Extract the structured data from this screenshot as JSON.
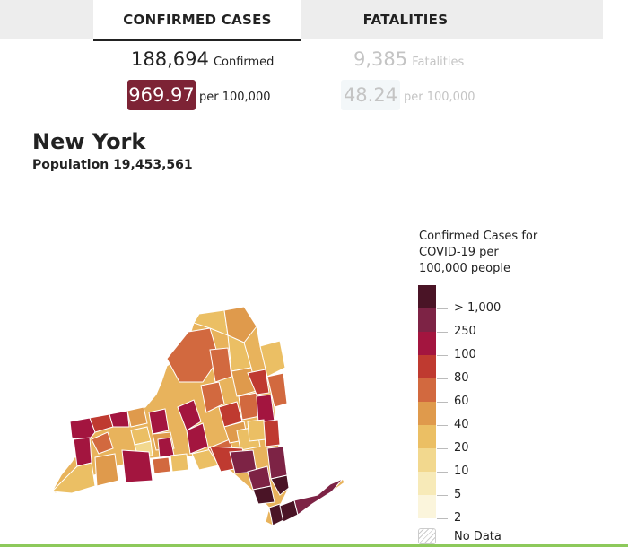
{
  "tabs": {
    "cases": "CONFIRMED CASES",
    "fatalities": "FATALITIES"
  },
  "cases": {
    "total": "188,694",
    "total_label": "Confirmed",
    "rate": "969.97",
    "rate_label": "per 100,000"
  },
  "fatalities": {
    "total": "9,385",
    "total_label": "Fatalities",
    "rate": "48.24",
    "rate_label": "per 100,000"
  },
  "state": {
    "name": "New York",
    "population": "Population 19,453,561"
  },
  "legend": {
    "title": "Confirmed Cases for COVID-19 per 100,000 people",
    "bins": [
      {
        "label": "> 1,000",
        "color": "#4a1426"
      },
      {
        "label": "250",
        "color": "#7d2345"
      },
      {
        "label": "100",
        "color": "#a3153f"
      },
      {
        "label": "80",
        "color": "#bf3a30"
      },
      {
        "label": "60",
        "color": "#d2693f"
      },
      {
        "label": "40",
        "color": "#df9a4c"
      },
      {
        "label": "20",
        "color": "#ebbf64"
      },
      {
        "label": "10",
        "color": "#f2d88e"
      },
      {
        "label": "5",
        "color": "#f7eab8"
      },
      {
        "label": "2",
        "color": "#fbf5dc"
      }
    ],
    "no_data": "No Data"
  },
  "colors": {
    "accent": "#7d2335",
    "active_underline": "#222222",
    "bottom_bar": "#8dc95b"
  }
}
